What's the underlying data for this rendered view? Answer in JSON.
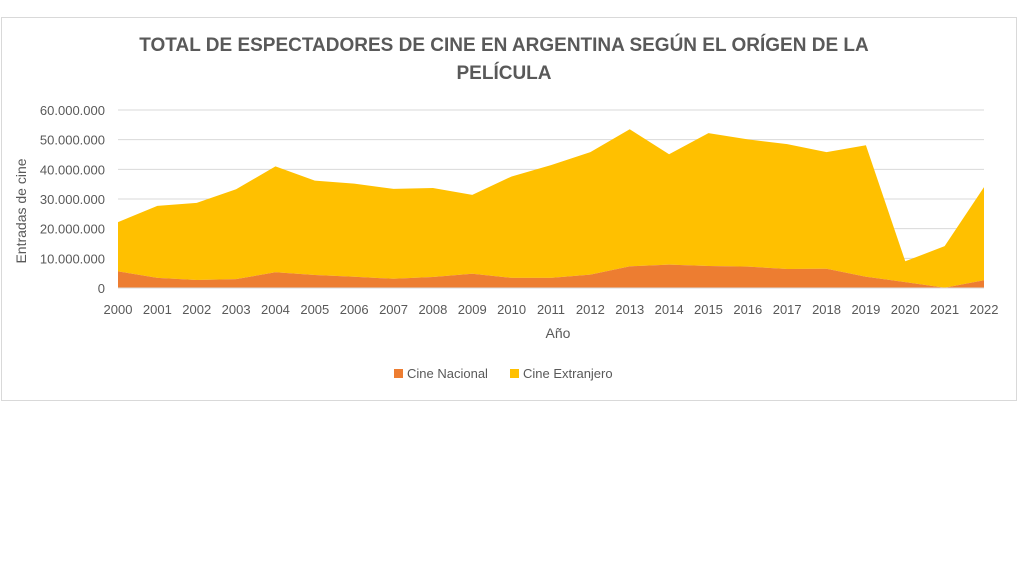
{
  "chart_data": {
    "type": "area",
    "stacked": true,
    "title": "TOTAL DE ESPECTADORES DE CINE EN ARGENTINA SEGÚN EL ORÍGEN DE LA PELÍCULA",
    "xlabel": "Año",
    "ylabel": "Entradas de cine",
    "categories": [
      "2000",
      "2001",
      "2002",
      "2003",
      "2004",
      "2005",
      "2006",
      "2007",
      "2008",
      "2009",
      "2010",
      "2011",
      "2012",
      "2013",
      "2014",
      "2015",
      "2016",
      "2017",
      "2018",
      "2019",
      "2020",
      "2021",
      "2022"
    ],
    "ylim": [
      0,
      60000000
    ],
    "yticks": [
      0,
      10000000,
      20000000,
      30000000,
      40000000,
      50000000,
      60000000
    ],
    "ytick_labels": [
      "0",
      "10.000.000",
      "20.000.000",
      "30.000.000",
      "40.000.000",
      "50.000.000",
      "60.000.000"
    ],
    "grid": true,
    "legend_position": "bottom",
    "series": [
      {
        "name": "Cine Nacional",
        "color": "#ED7D31",
        "values": [
          5600000,
          3400000,
          2700000,
          3000000,
          5300000,
          4400000,
          3800000,
          3100000,
          3700000,
          4800000,
          3400000,
          3400000,
          4500000,
          7300000,
          7900000,
          7400000,
          7200000,
          6400000,
          6500000,
          3800000,
          2000000,
          100000,
          2600000
        ]
      },
      {
        "name": "Cine Extranjero",
        "color": "#FFC000",
        "values": [
          16600000,
          24300000,
          26000000,
          30300000,
          35700000,
          31800000,
          31400000,
          30300000,
          30000000,
          26600000,
          34200000,
          38000000,
          41300000,
          46200000,
          37200000,
          44800000,
          42900000,
          42100000,
          39300000,
          44300000,
          7000000,
          14000000,
          31400000
        ]
      }
    ]
  }
}
